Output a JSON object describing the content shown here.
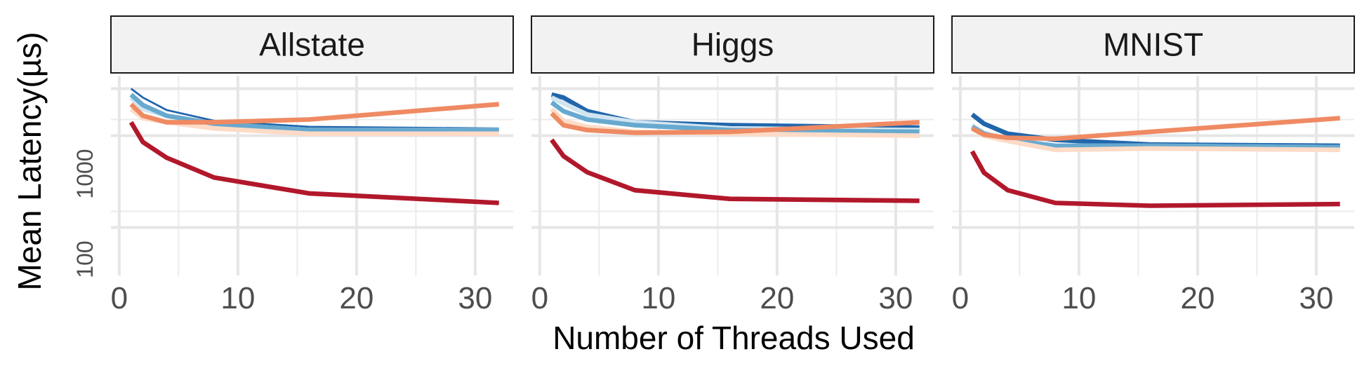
{
  "chart_data": {
    "type": "line",
    "xlabel": "Number of Threads Used",
    "ylabel": "Mean Latency(µs)",
    "y_scale": "log",
    "xlim": [
      0,
      32
    ],
    "ylim": [
      60,
      9000
    ],
    "x_ticks": [
      0,
      10,
      20,
      30
    ],
    "y_ticks": [
      100,
      1000
    ],
    "grid": true,
    "legend": "none",
    "panels": [
      {
        "title": "Allstate",
        "series": [
          {
            "color": "#2166ac",
            "width": 2.5,
            "x": [
              1,
              2,
              4,
              8,
              16,
              32
            ],
            "y": [
              6500,
              5200,
              3800,
              2900,
              2500,
              2400
            ]
          },
          {
            "color": "#d1e5f0",
            "width": 6,
            "x": [
              1,
              2,
              4,
              8,
              16,
              32
            ],
            "y": [
              5200,
              3900,
              3300,
              2700,
              2300,
              2300
            ]
          },
          {
            "color": "#67a9cf",
            "width": 6,
            "x": [
              1,
              2,
              4,
              8,
              16,
              32
            ],
            "y": [
              5600,
              4300,
              3300,
              2700,
              2300,
              2300
            ]
          },
          {
            "color": "#fddbc7",
            "width": 6,
            "x": [
              1,
              2,
              4,
              8,
              16,
              32
            ],
            "y": [
              3900,
              3100,
              2800,
              2400,
              2100,
              2100
            ]
          },
          {
            "color": "#ef8a62",
            "width": 6,
            "x": [
              1,
              2,
              4,
              8,
              16,
              32
            ],
            "y": [
              4400,
              3300,
              2800,
              2800,
              3000,
              4400
            ]
          },
          {
            "color": "#b2182b",
            "width": 6,
            "x": [
              1,
              2,
              4,
              8,
              16,
              32
            ],
            "y": [
              2800,
              1700,
              1150,
              700,
              470,
              370
            ]
          }
        ]
      },
      {
        "title": "Higgs",
        "series": [
          {
            "color": "#2166ac",
            "width": 6,
            "x": [
              1,
              2,
              4,
              8,
              16,
              32
            ],
            "y": [
              5600,
              5200,
              3700,
              2800,
              2600,
              2450
            ]
          },
          {
            "color": "#d1e5f0",
            "width": 6,
            "x": [
              1,
              2,
              4,
              8,
              16,
              32
            ],
            "y": [
              5200,
              4500,
              3400,
              2800,
              2400,
              2300
            ]
          },
          {
            "color": "#67a9cf",
            "width": 6,
            "x": [
              1,
              2,
              4,
              8,
              16,
              32
            ],
            "y": [
              4600,
              3700,
              3000,
              2600,
              2300,
              2200
            ]
          },
          {
            "color": "#fddbc7",
            "width": 6,
            "x": [
              1,
              2,
              4,
              8,
              16,
              32
            ],
            "y": [
              3900,
              2900,
              2500,
              2200,
              2100,
              2000
            ]
          },
          {
            "color": "#ef8a62",
            "width": 6,
            "x": [
              1,
              2,
              4,
              8,
              16,
              32
            ],
            "y": [
              3500,
              2600,
              2300,
              2150,
              2200,
              2800
            ]
          },
          {
            "color": "#b2182b",
            "width": 6,
            "x": [
              1,
              2,
              4,
              8,
              16,
              32
            ],
            "y": [
              1800,
              1200,
              800,
              510,
              410,
              390
            ]
          }
        ]
      },
      {
        "title": "MNIST",
        "series": [
          {
            "color": "#2166ac",
            "width": 6,
            "x": [
              1,
              2,
              4,
              8,
              16,
              32
            ],
            "y": [
              3400,
              2700,
              2100,
              1800,
              1600,
              1550
            ]
          },
          {
            "color": "#d1e5f0",
            "width": 6,
            "x": [
              1,
              2,
              4,
              8,
              16,
              32
            ],
            "y": [
              2600,
              2150,
              1850,
              1550,
              1550,
              1500
            ]
          },
          {
            "color": "#67a9cf",
            "width": 6,
            "x": [
              1,
              2,
              4,
              8,
              16,
              32
            ],
            "y": [
              2500,
              2100,
              1800,
              1550,
              1550,
              1500
            ]
          },
          {
            "color": "#fddbc7",
            "width": 6,
            "x": [
              1,
              2,
              4,
              8,
              16,
              32
            ],
            "y": [
              2400,
              2000,
              1750,
              1400,
              1450,
              1400
            ]
          },
          {
            "color": "#ef8a62",
            "width": 6,
            "x": [
              1,
              2,
              4,
              8,
              16,
              32
            ],
            "y": [
              2400,
              2050,
              1900,
              1850,
              2200,
              3100
            ]
          },
          {
            "color": "#b2182b",
            "width": 6,
            "x": [
              1,
              2,
              4,
              8,
              16,
              32
            ],
            "y": [
              1350,
              790,
              510,
              370,
              345,
              360
            ]
          }
        ]
      }
    ]
  }
}
